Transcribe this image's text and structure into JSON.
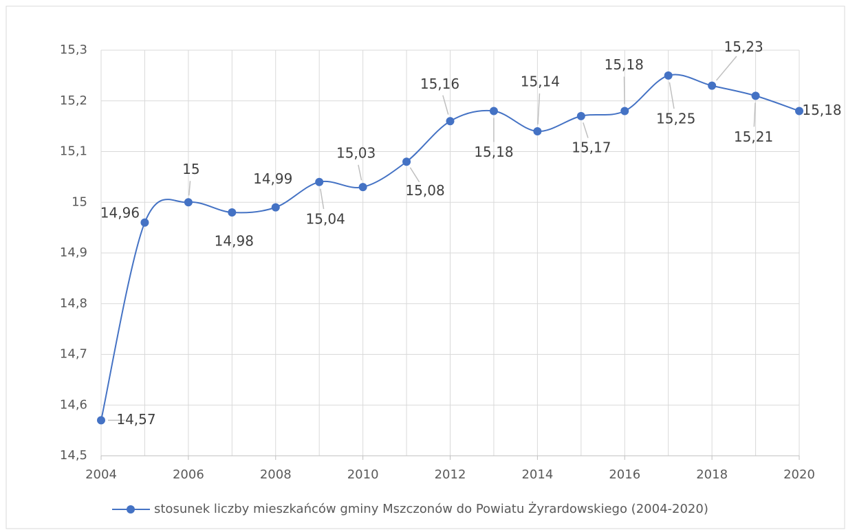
{
  "chart_data": {
    "type": "line",
    "x": [
      2004,
      2005,
      2006,
      2007,
      2008,
      2009,
      2010,
      2011,
      2012,
      2013,
      2014,
      2015,
      2016,
      2017,
      2018,
      2019,
      2020
    ],
    "series": [
      {
        "name": "stosunek liczby mieszkańców gminy Mszczonów do Powiatu Żyrardowskiego (2004-2020)",
        "color": "#4472c4",
        "values": [
          14.57,
          14.96,
          15,
          14.98,
          14.99,
          15.04,
          15.03,
          15.08,
          15.16,
          15.18,
          15.14,
          15.17,
          15.18,
          15.25,
          15.23,
          15.21,
          15.18
        ],
        "value_labels": [
          "14,57",
          "14,96",
          "15",
          "14,98",
          "14,99",
          "15,04",
          "15,03",
          "15,08",
          "15,16",
          "15,18",
          "15,14",
          "15,17",
          "15,18",
          "15,25",
          "15,23",
          "15,21",
          "15,18"
        ]
      }
    ],
    "xlim": [
      2004,
      2020
    ],
    "xticks": [
      2004,
      2006,
      2008,
      2010,
      2012,
      2014,
      2016,
      2018,
      2020
    ],
    "ylim": [
      14.5,
      15.3
    ],
    "yticks": [
      {
        "value": 14.5,
        "label": "14,5"
      },
      {
        "value": 14.6,
        "label": "14,6"
      },
      {
        "value": 14.7,
        "label": "14,7"
      },
      {
        "value": 14.8,
        "label": "14,8"
      },
      {
        "value": 14.9,
        "label": "14,9"
      },
      15,
      {
        "value": 15.1,
        "label": "15,1"
      },
      {
        "value": 15.2,
        "label": "15,2"
      },
      {
        "value": 15.3,
        "label": "15,3"
      }
    ],
    "grid": true,
    "legend": "bottom",
    "smooth": true
  }
}
